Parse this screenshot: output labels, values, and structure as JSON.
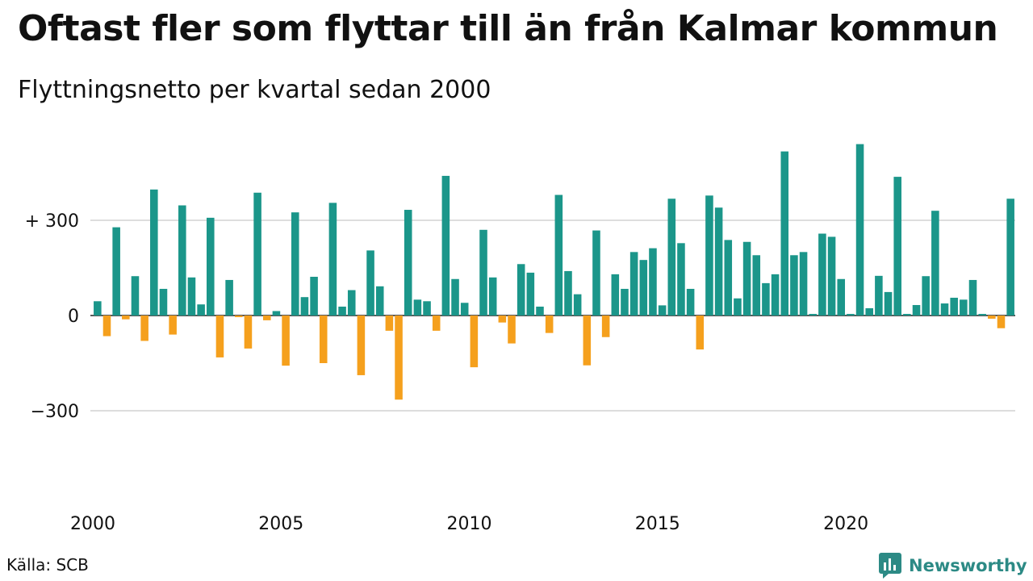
{
  "title": "Oftast fler som flyttar till än från Kalmar kommun",
  "subtitle": "Flyttningsnetto per kvartal sedan 2000",
  "source": "Källa: SCB",
  "logo_text": "Newsworthy",
  "colors": {
    "positive": "#1b968a",
    "negative": "#f5a01d",
    "grid": "#dddddd",
    "logo": "#2c8a85"
  },
  "chart_data": {
    "type": "bar",
    "x_start": "2000 Q1",
    "x_step": "quarter",
    "x_tick_labels": [
      "2000",
      "2005",
      "2010",
      "2015",
      "2020"
    ],
    "y_ticks": [
      300,
      0,
      -300
    ],
    "y_tick_labels": [
      "+ 300",
      "0",
      "−300"
    ],
    "ylim": [
      -400,
      560
    ],
    "values": [
      45,
      -65,
      278,
      -12,
      124,
      -80,
      397,
      84,
      -60,
      347,
      120,
      35,
      308,
      -132,
      112,
      -5,
      -104,
      387,
      -15,
      14,
      -158,
      325,
      58,
      122,
      -150,
      355,
      28,
      80,
      -188,
      205,
      92,
      -48,
      -265,
      333,
      50,
      45,
      -48,
      440,
      115,
      40,
      -163,
      270,
      120,
      -22,
      -88,
      162,
      135,
      28,
      -55,
      380,
      140,
      67,
      -157,
      268,
      -68,
      130,
      84,
      200,
      175,
      212,
      32,
      368,
      228,
      84,
      -107,
      378,
      340,
      238,
      54,
      232,
      190,
      102,
      130,
      517,
      190,
      200,
      5,
      258,
      248,
      115,
      5,
      540,
      23,
      125,
      74,
      437,
      5,
      33,
      124,
      330,
      38,
      56,
      50,
      112,
      5,
      -10,
      -40,
      368
    ]
  }
}
